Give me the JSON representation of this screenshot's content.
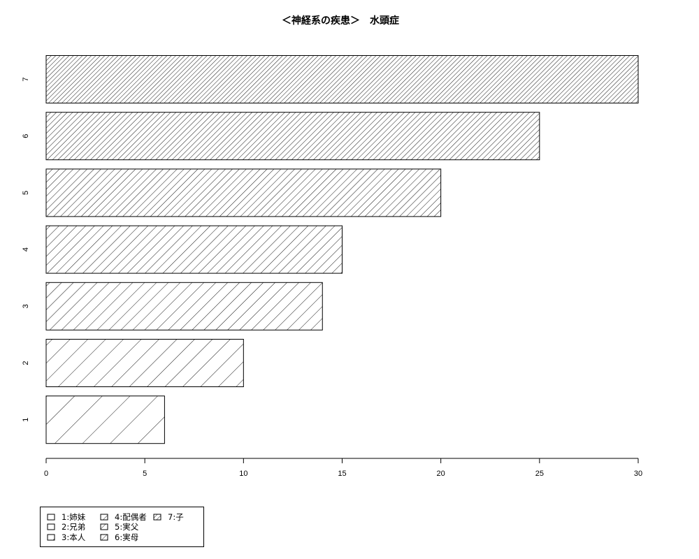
{
  "chart_data": {
    "type": "bar",
    "orientation": "horizontal",
    "title": "＜神経系の疾患＞　水頭症",
    "xlabel": "",
    "ylabel": "",
    "categories": [
      "1",
      "2",
      "3",
      "4",
      "5",
      "6",
      "7"
    ],
    "values": [
      6,
      10,
      14,
      15,
      20,
      25,
      30
    ],
    "xlim": [
      0,
      30
    ],
    "xticks": [
      "0",
      "5",
      "10",
      "15",
      "20",
      "25",
      "30"
    ],
    "grid": false,
    "fill": "diagonal hatching, density increasing with category",
    "bar_color": "#000000",
    "legend_position": "bottom-left",
    "legend": [
      "1:姉妹",
      "2:兄弟",
      "3:本人",
      "4:配偶者",
      "5:実父",
      "6:実母",
      "7:子"
    ]
  }
}
